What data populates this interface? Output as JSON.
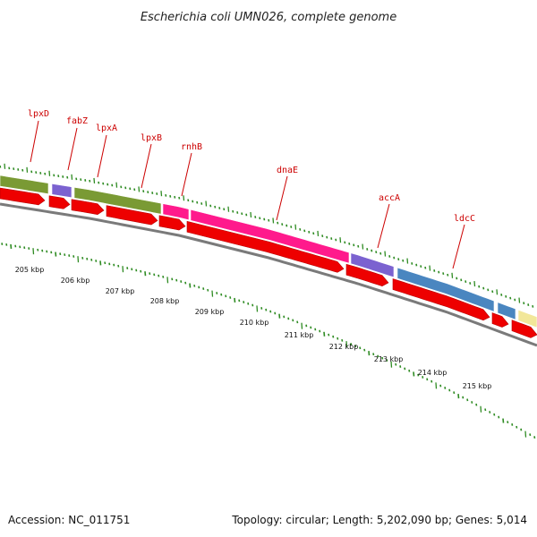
{
  "header": {
    "title": "Escherichia coli UMN026, complete genome"
  },
  "footer": {
    "accession": "Accession: NC_011751",
    "summary": "Topology: circular; Length: 5,202,090 bp; Genes: 5,014"
  },
  "colors": {
    "forward_cds": "#ee0000",
    "strand_line": "#7a7a7a",
    "tick_color": "#2e8b22",
    "label_color": "#cc0000",
    "olive": "#7a9a34",
    "purple": "#7b62d0",
    "magenta": "#ff1a8c",
    "steel_blue": "#4a86c0",
    "pale_yellow": "#f2e79a"
  },
  "genes": [
    {
      "name": "lpxD"
    },
    {
      "name": "fabZ"
    },
    {
      "name": "lpxA"
    },
    {
      "name": "lpxB"
    },
    {
      "name": "rnhB"
    },
    {
      "name": "dnaE"
    },
    {
      "name": "accA"
    },
    {
      "name": "ldcC"
    }
  ],
  "scale": {
    "unit": "kbp",
    "labels": [
      "205 kbp",
      "206 kbp",
      "207 kbp",
      "208 kbp",
      "209 kbp",
      "210 kbp",
      "211 kbp",
      "212 kbp",
      "213 kbp",
      "214 kbp",
      "215 kbp"
    ]
  }
}
